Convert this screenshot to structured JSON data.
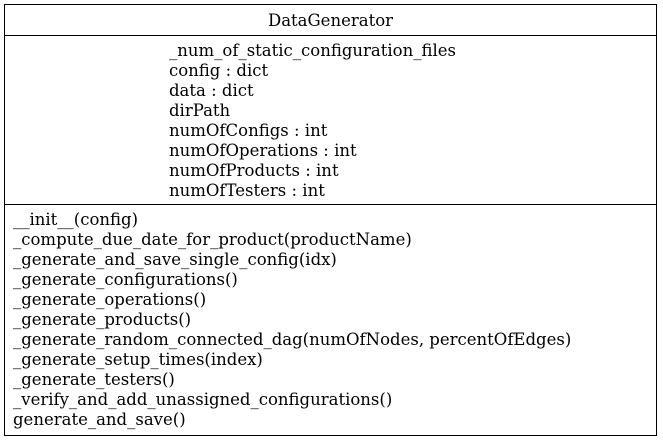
{
  "class": {
    "name": "DataGenerator",
    "attributes": [
      "_num_of_static_configuration_files",
      "config : dict",
      "data : dict",
      "dirPath",
      "numOfConfigs : int",
      "numOfOperations : int",
      "numOfProducts : int",
      "numOfTesters : int"
    ],
    "methods": [
      "__init__(config)",
      "_compute_due_date_for_product(productName)",
      "_generate_and_save_single_config(idx)",
      "_generate_configurations()",
      "_generate_operations()",
      "_generate_products()",
      "_generate_random_connected_dag(numOfNodes, percentOfEdges)",
      "_generate_setup_times(index)",
      "_generate_testers()",
      "_verify_and_add_unassigned_configurations()",
      "generate_and_save()"
    ]
  }
}
